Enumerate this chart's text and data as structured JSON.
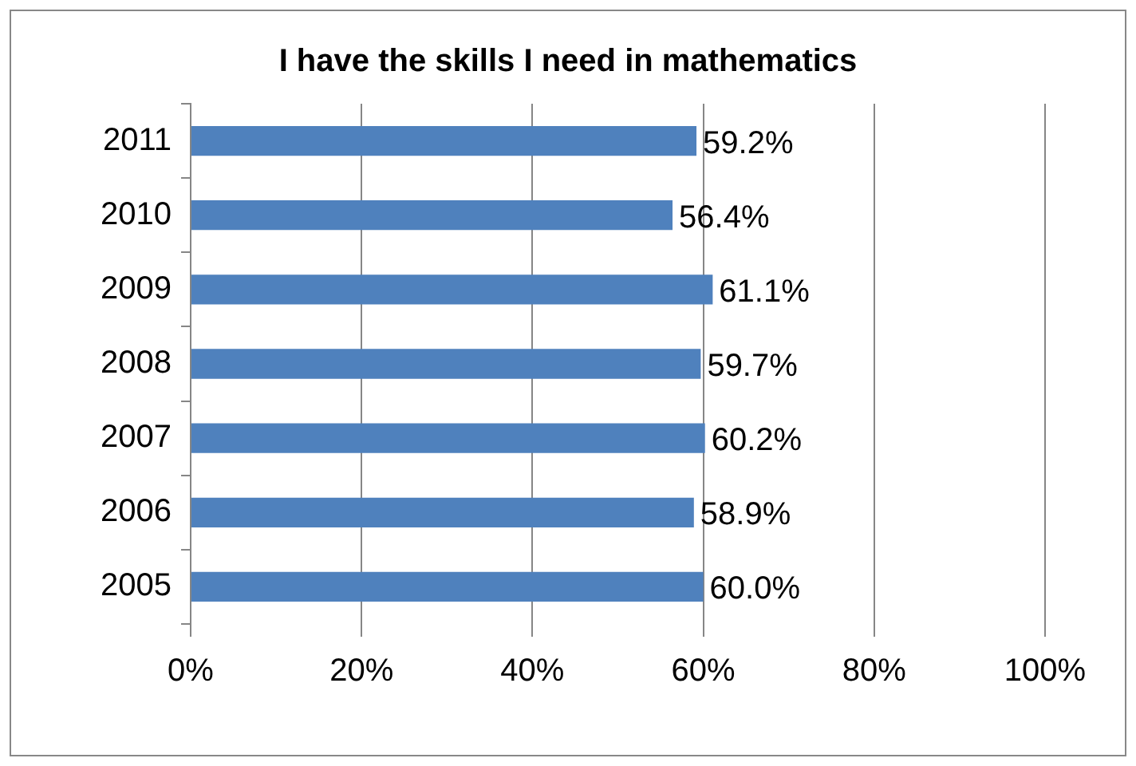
{
  "chart_data": {
    "type": "bar",
    "orientation": "horizontal",
    "title": "I have the skills I need in mathematics",
    "categories": [
      "2011",
      "2010",
      "2009",
      "2008",
      "2007",
      "2006",
      "2005"
    ],
    "values": [
      59.2,
      56.4,
      61.1,
      59.7,
      60.2,
      58.9,
      60.0
    ],
    "value_labels": [
      "59.2%",
      "56.4%",
      "61.1%",
      "59.7%",
      "60.2%",
      "58.9%",
      "60.0%"
    ],
    "color": "#4f81bd",
    "xlim": [
      0,
      100
    ],
    "xticks": [
      {
        "value": 0,
        "label": "0%"
      },
      {
        "value": 20,
        "label": "20%"
      },
      {
        "value": 40,
        "label": "40%"
      },
      {
        "value": 60,
        "label": "60%"
      },
      {
        "value": 80,
        "label": "80%"
      },
      {
        "value": 100,
        "label": "100%"
      }
    ],
    "grid": "x"
  }
}
